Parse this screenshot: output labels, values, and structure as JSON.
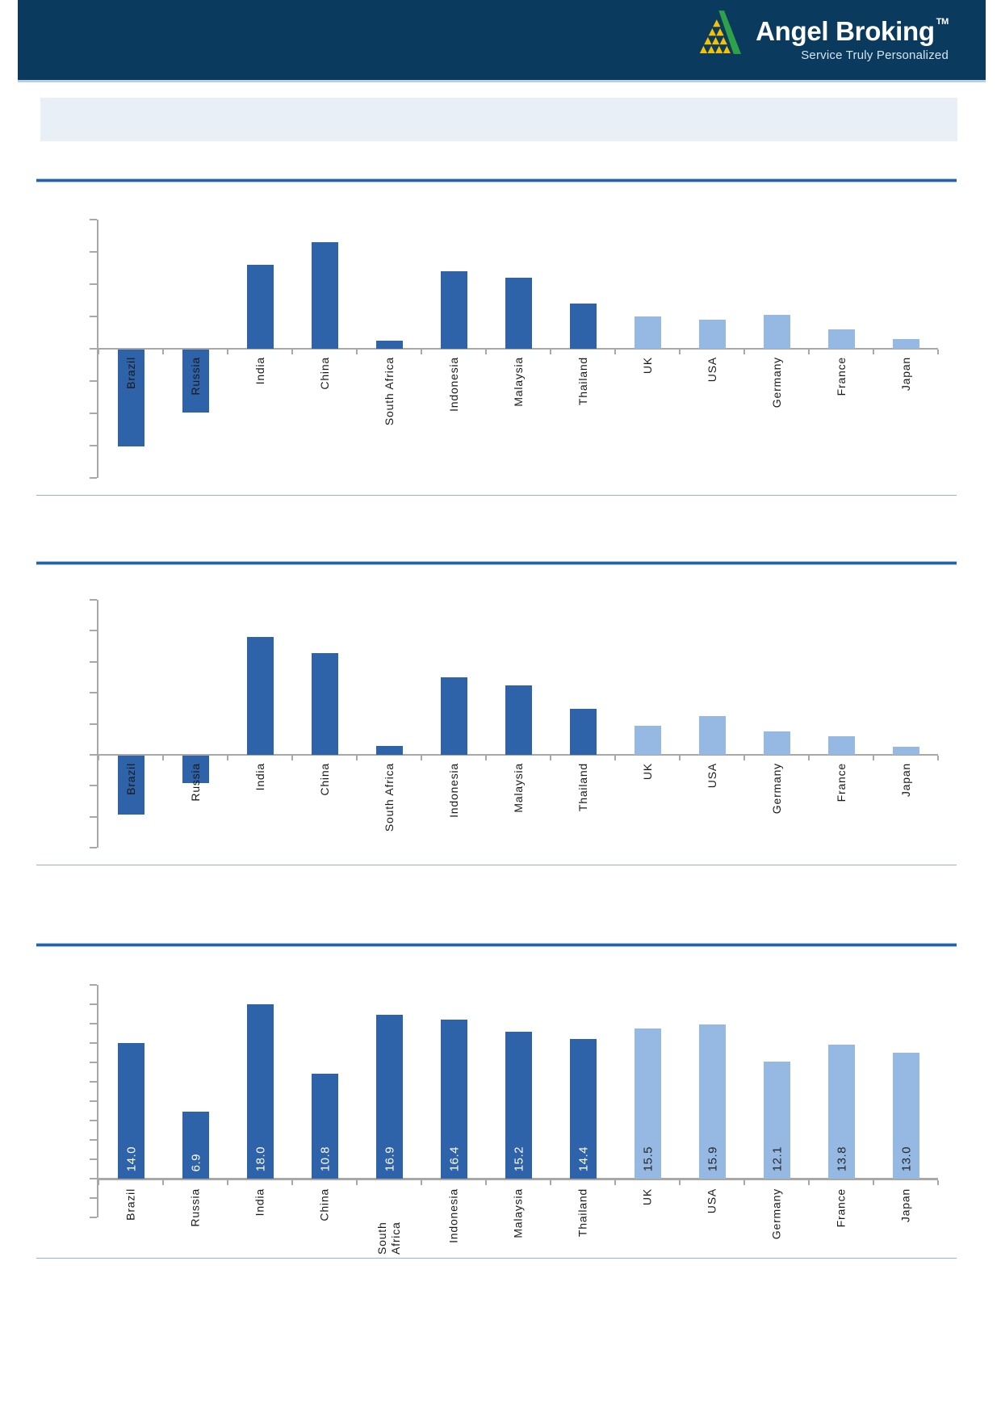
{
  "header": {
    "brand": "Angel Broking",
    "trademark": "TM",
    "tagline": "Service Truly Personalized",
    "bar_color": "#0B3A5F",
    "logo_green": "#2FA148",
    "logo_yellow": "#F6C100"
  },
  "styles": {
    "bar_dark": "#2E62A9",
    "bar_light": "#95B9E3",
    "axis_gray": "#A8A8A8",
    "rule_blue": "#2563A8",
    "rule_light_edge": "#A6C6E8",
    "separator": "#96B3CC",
    "band_bg": "#E9EFF6",
    "header_bottom_edge": "#B7CFE5",
    "tagline_color": "#D5E5F2",
    "value_label_on_dark": "#FFFFFF",
    "value_label_on_light": "#262626"
  },
  "chart_data": [
    {
      "type": "bar",
      "title": "",
      "xlabel": "",
      "ylabel": "",
      "categories": [
        "Brazil",
        "Russia",
        "India",
        "China",
        "South Africa",
        "Indonesia",
        "Malaysia",
        "Thailand",
        "UK",
        "USA",
        "Germany",
        "France",
        "Japan"
      ],
      "values": [
        -6.0,
        -3.9,
        5.2,
        6.6,
        0.5,
        4.8,
        4.4,
        2.8,
        2.0,
        1.8,
        2.1,
        1.2,
        0.6
      ],
      "bar_colors": [
        "dark",
        "dark",
        "dark",
        "dark",
        "dark",
        "dark",
        "dark",
        "dark",
        "light",
        "light",
        "light",
        "light",
        "light"
      ],
      "ylim": [
        -8,
        8
      ],
      "tick_interval": 2,
      "y_tick_labels_visible": false,
      "data_labels": false,
      "values_estimated_from_pixels": true,
      "grid": false,
      "legend": "none"
    },
    {
      "type": "bar",
      "title": "",
      "xlabel": "",
      "ylabel": "",
      "categories": [
        "Brazil",
        "Russia",
        "India",
        "China",
        "South Africa",
        "Indonesia",
        "Malaysia",
        "Thailand",
        "UK",
        "USA",
        "Germany",
        "France",
        "Japan"
      ],
      "values": [
        -3.8,
        -1.8,
        7.6,
        6.6,
        0.6,
        5.0,
        4.5,
        3.0,
        1.9,
        2.5,
        1.5,
        1.2,
        0.5
      ],
      "bar_colors": [
        "dark",
        "dark",
        "dark",
        "dark",
        "dark",
        "dark",
        "dark",
        "dark",
        "light",
        "light",
        "light",
        "light",
        "light"
      ],
      "ylim": [
        -6,
        10
      ],
      "tick_interval": 2,
      "y_tick_labels_visible": false,
      "data_labels": false,
      "values_estimated_from_pixels": true,
      "grid": false,
      "legend": "none"
    },
    {
      "type": "bar",
      "title": "",
      "xlabel": "",
      "ylabel": "",
      "categories": [
        "Brazil",
        "Russia",
        "India",
        "China",
        "South Africa",
        "Indonesia",
        "Malaysia",
        "Thailand",
        "UK",
        "USA",
        "Germany",
        "France",
        "Japan"
      ],
      "values": [
        14.0,
        6.9,
        18.0,
        10.8,
        16.9,
        16.4,
        15.2,
        14.4,
        15.5,
        15.9,
        12.1,
        13.8,
        13.0
      ],
      "bar_colors": [
        "dark",
        "dark",
        "dark",
        "dark",
        "dark",
        "dark",
        "dark",
        "dark",
        "light",
        "light",
        "light",
        "light",
        "light"
      ],
      "ylim": [
        0,
        20
      ],
      "tick_interval": 2,
      "y_tick_labels_visible": false,
      "data_labels": true,
      "grid": false,
      "legend": "none"
    }
  ]
}
